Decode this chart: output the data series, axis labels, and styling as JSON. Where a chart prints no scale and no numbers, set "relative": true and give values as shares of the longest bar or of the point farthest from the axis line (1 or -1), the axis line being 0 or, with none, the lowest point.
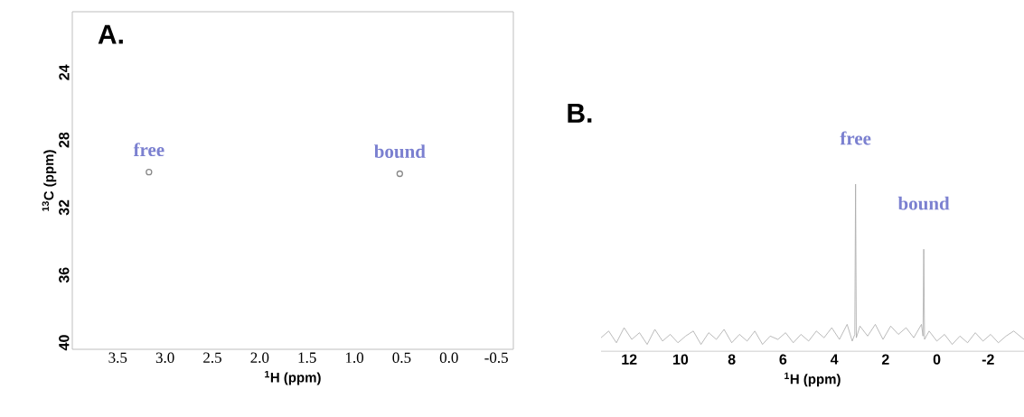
{
  "chart_data": [
    {
      "type": "scatter",
      "title": "A.",
      "xlabel": "$^{1}$H (ppm)",
      "ylabel": "$^{13}$C (ppm)",
      "xlim": [
        3.98,
        -0.68
      ],
      "ylim": [
        40.4,
        20.4
      ],
      "xticks": [
        3.5,
        {
          "value": 3,
          "label": "3.0"
        },
        2.5,
        {
          "value": 2,
          "label": "2.0"
        },
        1.5,
        {
          "value": 1,
          "label": "1.0"
        },
        0.5,
        {
          "value": 0,
          "label": "0.0"
        },
        -0.5
      ],
      "yticks": [
        24,
        28,
        32,
        36,
        40
      ],
      "marker": "circle",
      "series": [
        {
          "color": "#888888",
          "x": [
            3.17,
            0.52
          ],
          "values": [
            29.9,
            30.0
          ]
        }
      ],
      "annotations": [
        {
          "text": "free",
          "x": 3.17,
          "y": 29.9
        },
        {
          "text": "bound",
          "x": 0.52,
          "y": 30.0
        }
      ]
    },
    {
      "type": "line",
      "title": "B.",
      "xlabel": "$^{1}$H (ppm)",
      "relative": true,
      "tick_labels": "x",
      "xlim": [
        13.1,
        -3.4
      ],
      "xticks": [
        12,
        10,
        8,
        6,
        4,
        2,
        0,
        -2
      ],
      "series": [
        {
          "color": "#a8a8a8",
          "x": [
            13.1,
            12.8,
            12.5,
            12.2,
            11.9,
            11.6,
            11.3,
            11.0,
            10.7,
            10.4,
            10.1,
            9.8,
            9.5,
            9.2,
            8.9,
            8.6,
            8.3,
            8.0,
            7.7,
            7.4,
            7.1,
            6.8,
            6.5,
            6.2,
            5.9,
            5.6,
            5.3,
            5.0,
            4.7,
            4.4,
            4.1,
            3.8,
            3.5,
            3.3,
            3.2,
            3.17,
            3.14,
            3.0,
            2.7,
            2.4,
            2.1,
            1.8,
            1.5,
            1.2,
            0.9,
            0.6,
            0.54,
            0.51,
            0.48,
            0.3,
            0.0,
            -0.3,
            -0.6,
            -0.9,
            -1.2,
            -1.5,
            -1.8,
            -2.1,
            -2.4,
            -2.7,
            -3.0,
            -3.4
          ],
          "values": [
            0.08,
            0.12,
            0.05,
            0.14,
            0.07,
            0.11,
            0.04,
            0.13,
            0.06,
            0.1,
            0.05,
            0.09,
            0.12,
            0.04,
            0.11,
            0.07,
            0.13,
            0.05,
            0.1,
            0.06,
            0.12,
            0.04,
            0.09,
            0.07,
            0.11,
            0.05,
            0.1,
            0.06,
            0.12,
            0.08,
            0.14,
            0.07,
            0.16,
            0.06,
            0.1,
            1,
            0.08,
            0.15,
            0.09,
            0.16,
            0.07,
            0.15,
            0.1,
            0.14,
            0.08,
            0.16,
            0.09,
            0.61,
            0.07,
            0.12,
            0.06,
            0.1,
            0.04,
            0.09,
            0.05,
            0.11,
            0.06,
            0.1,
            0.05,
            0.09,
            0.12,
            0.07
          ]
        }
      ],
      "annotations": [
        {
          "text": "free",
          "x": 3.17,
          "y": 1
        },
        {
          "text": "bound",
          "x": 0.51,
          "y": 0.61
        }
      ]
    }
  ]
}
